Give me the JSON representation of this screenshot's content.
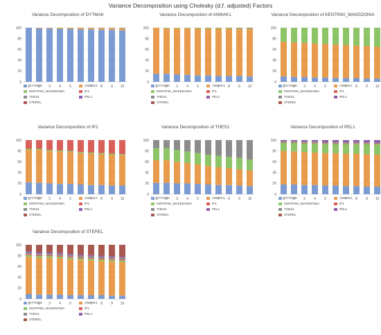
{
  "title": "Variance Decomposition using Cholesky (d.f. adjusted) Factors",
  "series_names": [
    "DYTMAK",
    "ANMAK1",
    "KENTRIKI_MAKEDONIA",
    "IP1",
    "THES1",
    "PEL1",
    "STEREL"
  ],
  "colors": {
    "DYTMAK": "#7b9bd2",
    "ANMAK1": "#e89b4c",
    "KENTRIKI_MAKEDONIA": "#8dc467",
    "IP1": "#d95f5a",
    "THES1": "#8c8c8c",
    "PEL1": "#8f5ca8",
    "STEREL": "#a9584f"
  },
  "chart_data": [
    {
      "type": "bar",
      "stacked": true,
      "title": "Variance Decomposition of DYTMAK",
      "categories": [
        "1",
        "2",
        "3",
        "4",
        "5",
        "6",
        "7",
        "8",
        "9",
        "10"
      ],
      "ylim": [
        0,
        100
      ],
      "yticks": [
        "0",
        "20",
        "40",
        "60",
        "80",
        "100"
      ],
      "series": [
        {
          "name": "DYTMAK",
          "values": [
            100,
            99,
            99,
            98,
            98,
            97,
            97,
            96,
            96,
            95
          ]
        },
        {
          "name": "ANMAK1",
          "values": [
            0,
            1,
            1,
            1.5,
            1.5,
            2,
            2,
            2.5,
            2.5,
            3
          ]
        },
        {
          "name": "KENTRIKI_MAKEDONIA",
          "values": [
            0,
            0,
            0,
            0.5,
            0.5,
            0.5,
            0.5,
            0.5,
            0.5,
            1
          ]
        },
        {
          "name": "IP1",
          "values": [
            0,
            0,
            0,
            0,
            0,
            0.5,
            0.5,
            0.5,
            0.5,
            0.5
          ]
        },
        {
          "name": "THES1",
          "values": [
            0,
            0,
            0,
            0,
            0,
            0,
            0,
            0.5,
            0.5,
            0.5
          ]
        },
        {
          "name": "PEL1",
          "values": [
            0,
            0,
            0,
            0,
            0,
            0,
            0,
            0,
            0,
            0
          ]
        },
        {
          "name": "STEREL",
          "values": [
            0,
            0,
            0,
            0,
            0,
            0,
            0,
            0,
            0,
            0
          ]
        }
      ]
    },
    {
      "type": "bar",
      "stacked": true,
      "title": "Variance Decomposition of ANMAK1",
      "categories": [
        "1",
        "2",
        "3",
        "4",
        "5",
        "6",
        "7",
        "8",
        "9",
        "10"
      ],
      "ylim": [
        0,
        100
      ],
      "yticks": [
        "0",
        "20",
        "40",
        "60",
        "80",
        "100"
      ],
      "series": [
        {
          "name": "DYTMAK",
          "values": [
            15,
            15,
            14,
            13,
            12,
            12,
            11,
            11,
            11,
            10
          ]
        },
        {
          "name": "ANMAK1",
          "values": [
            85,
            84,
            85,
            86,
            86,
            86,
            87,
            87,
            86,
            87
          ]
        },
        {
          "name": "KENTRIKI_MAKEDONIA",
          "values": [
            0,
            1,
            1,
            1,
            1.5,
            1.5,
            1.5,
            1.5,
            2,
            2
          ]
        },
        {
          "name": "IP1",
          "values": [
            0,
            0,
            0,
            0,
            0.5,
            0.5,
            0.5,
            0.5,
            1,
            1
          ]
        },
        {
          "name": "THES1",
          "values": [
            0,
            0,
            0,
            0,
            0,
            0,
            0,
            0,
            0,
            0
          ]
        },
        {
          "name": "PEL1",
          "values": [
            0,
            0,
            0,
            0,
            0,
            0,
            0,
            0,
            0,
            0
          ]
        },
        {
          "name": "STEREL",
          "values": [
            0,
            0,
            0,
            0,
            0,
            0,
            0,
            0,
            0,
            0
          ]
        }
      ]
    },
    {
      "type": "bar",
      "stacked": true,
      "title": "Variance Decomposition of KENTRIKI_MAKEDONIA",
      "categories": [
        "1",
        "2",
        "3",
        "4",
        "5",
        "6",
        "7",
        "8",
        "9",
        "10"
      ],
      "ylim": [
        0,
        100
      ],
      "yticks": [
        "0",
        "20",
        "40",
        "60",
        "80",
        "100"
      ],
      "series": [
        {
          "name": "DYTMAK",
          "values": [
            10,
            9,
            9,
            8,
            8,
            7,
            7,
            7,
            6,
            6
          ]
        },
        {
          "name": "ANMAK1",
          "values": [
            64,
            64,
            63,
            63,
            62,
            62,
            61,
            60,
            60,
            59
          ]
        },
        {
          "name": "KENTRIKI_MAKEDONIA",
          "values": [
            26,
            27,
            28,
            29,
            30,
            31,
            32,
            33,
            34,
            35
          ]
        },
        {
          "name": "IP1",
          "values": [
            0,
            0,
            0,
            0,
            0,
            0,
            0,
            0,
            0,
            0
          ]
        },
        {
          "name": "THES1",
          "values": [
            0,
            0,
            0,
            0,
            0,
            0,
            0,
            0,
            0,
            0
          ]
        },
        {
          "name": "PEL1",
          "values": [
            0,
            0,
            0,
            0,
            0,
            0,
            0,
            0,
            0,
            0
          ]
        },
        {
          "name": "STEREL",
          "values": [
            0,
            0,
            0,
            0,
            0,
            0,
            0,
            0,
            0,
            0
          ]
        }
      ]
    },
    {
      "type": "bar",
      "stacked": true,
      "title": "Variance Decomposition of IP1",
      "categories": [
        "1",
        "2",
        "3",
        "4",
        "5",
        "6",
        "7",
        "8",
        "9",
        "10"
      ],
      "ylim": [
        0,
        100
      ],
      "yticks": [
        "0",
        "20",
        "40",
        "60",
        "80",
        "100"
      ],
      "series": [
        {
          "name": "DYTMAK",
          "values": [
            22,
            21,
            20,
            19,
            19,
            18,
            17,
            17,
            16,
            16
          ]
        },
        {
          "name": "ANMAK1",
          "values": [
            60,
            61,
            60,
            60,
            59,
            58,
            58,
            57,
            57,
            56
          ]
        },
        {
          "name": "KENTRIKI_MAKEDONIA",
          "values": [
            2,
            2,
            2,
            2,
            2,
            2,
            2,
            2,
            2,
            2
          ]
        },
        {
          "name": "IP1",
          "values": [
            16,
            16,
            18,
            19,
            20,
            22,
            23,
            24,
            25,
            26
          ]
        },
        {
          "name": "THES1",
          "values": [
            0,
            0,
            0,
            0,
            0,
            0,
            0,
            0,
            0,
            0
          ]
        },
        {
          "name": "PEL1",
          "values": [
            0,
            0,
            0,
            0,
            0,
            0,
            0,
            0,
            0,
            0
          ]
        },
        {
          "name": "STEREL",
          "values": [
            0,
            0,
            0,
            0,
            0,
            0,
            0,
            0,
            0,
            0
          ]
        }
      ]
    },
    {
      "type": "bar",
      "stacked": true,
      "title": "Variance Decomposition of THES1",
      "categories": [
        "1",
        "2",
        "3",
        "4",
        "5",
        "6",
        "7",
        "8",
        "9",
        "10"
      ],
      "ylim": [
        0,
        100
      ],
      "yticks": [
        "0",
        "20",
        "40",
        "60",
        "80",
        "100"
      ],
      "series": [
        {
          "name": "DYTMAK",
          "values": [
            21,
            21,
            20,
            20,
            19,
            18,
            17,
            17,
            16,
            15
          ]
        },
        {
          "name": "ANMAK1",
          "values": [
            42,
            42,
            40,
            38,
            36,
            34,
            33,
            31,
            30,
            29
          ]
        },
        {
          "name": "KENTRIKI_MAKEDONIA",
          "values": [
            22,
            22,
            22,
            21,
            21,
            21,
            21,
            21,
            21,
            20
          ]
        },
        {
          "name": "IP1",
          "values": [
            0,
            0,
            0,
            0,
            0,
            0,
            0,
            0,
            0,
            0
          ]
        },
        {
          "name": "THES1",
          "values": [
            15,
            15,
            18,
            21,
            24,
            27,
            29,
            31,
            33,
            36
          ]
        },
        {
          "name": "PEL1",
          "values": [
            0,
            0,
            0,
            0,
            0,
            0,
            0,
            0,
            0,
            0
          ]
        },
        {
          "name": "STEREL",
          "values": [
            0,
            0,
            0,
            0,
            0,
            0,
            0,
            0,
            0,
            0
          ]
        }
      ]
    },
    {
      "type": "bar",
      "stacked": true,
      "title": "Variance Decomposition of PEL1",
      "categories": [
        "1",
        "2",
        "3",
        "4",
        "5",
        "6",
        "7",
        "8",
        "9",
        "10"
      ],
      "ylim": [
        0,
        100
      ],
      "yticks": [
        "0",
        "20",
        "40",
        "60",
        "80",
        "100"
      ],
      "series": [
        {
          "name": "DYTMAK",
          "values": [
            18,
            18,
            17,
            17,
            16,
            16,
            15,
            15,
            14,
            14
          ]
        },
        {
          "name": "ANMAK1",
          "values": [
            62,
            61,
            61,
            60,
            60,
            60,
            60,
            60,
            60,
            59
          ]
        },
        {
          "name": "KENTRIKI_MAKEDONIA",
          "values": [
            15,
            16,
            16,
            17,
            17,
            17,
            18,
            18,
            19,
            19
          ]
        },
        {
          "name": "IP1",
          "values": [
            1,
            1,
            1,
            1,
            1,
            1,
            1,
            1,
            1,
            1
          ]
        },
        {
          "name": "THES1",
          "values": [
            2,
            2,
            2,
            2,
            2,
            2,
            2,
            2,
            2,
            2
          ]
        },
        {
          "name": "PEL1",
          "values": [
            2,
            2,
            3,
            3,
            4,
            4,
            4,
            4,
            4,
            5
          ]
        },
        {
          "name": "STEREL",
          "values": [
            0,
            0,
            0,
            0,
            0,
            0,
            0,
            0,
            0,
            0
          ]
        }
      ]
    },
    {
      "type": "bar",
      "stacked": true,
      "title": "Variance Decomposition of STEREL",
      "categories": [
        "1",
        "2",
        "3",
        "4",
        "5",
        "6",
        "7",
        "8",
        "9",
        "10"
      ],
      "ylim": [
        0,
        100
      ],
      "yticks": [
        "0",
        "20",
        "40",
        "60",
        "80",
        "100"
      ],
      "series": [
        {
          "name": "DYTMAK",
          "values": [
            9,
            8,
            8,
            8,
            7,
            7,
            7,
            7,
            6,
            6
          ]
        },
        {
          "name": "ANMAK1",
          "values": [
            69,
            68,
            68,
            67,
            66,
            65,
            64,
            63,
            63,
            62
          ]
        },
        {
          "name": "KENTRIKI_MAKEDONIA",
          "values": [
            3,
            3,
            3,
            3,
            3,
            3,
            3,
            3,
            3,
            3
          ]
        },
        {
          "name": "IP1",
          "values": [
            2,
            2,
            2,
            2,
            2,
            2,
            2,
            2,
            2,
            2
          ]
        },
        {
          "name": "THES1",
          "values": [
            3,
            3,
            3,
            3,
            3,
            3,
            3,
            3,
            3,
            3
          ]
        },
        {
          "name": "PEL1",
          "values": [
            2,
            2,
            2,
            2,
            2,
            2,
            2,
            2,
            2,
            2
          ]
        },
        {
          "name": "STEREL",
          "values": [
            12,
            14,
            14,
            15,
            17,
            18,
            19,
            20,
            21,
            22
          ]
        }
      ]
    }
  ]
}
